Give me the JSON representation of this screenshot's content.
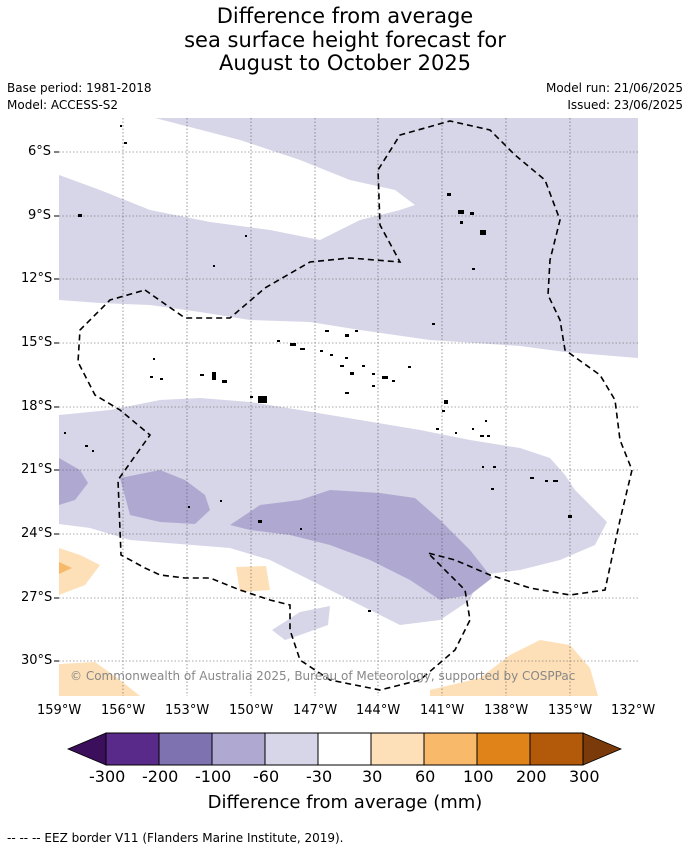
{
  "title": {
    "line1": "Difference from average",
    "line2": "sea surface height forecast for",
    "line3": "August to October 2025"
  },
  "meta": {
    "base_period": "Base period: 1981-2018",
    "model": "Model: ACCESS-S2",
    "model_run": "Model run: 21/06/2025",
    "issued": "Issued: 23/06/2025"
  },
  "copyright": "© Commonwealth of Australia 2025, Bureau of Meteorology, supported by COSPPac",
  "map": {
    "lat_ticks": [
      "6°S",
      "9°S",
      "12°S",
      "15°S",
      "18°S",
      "21°S",
      "24°S",
      "27°S",
      "30°S"
    ],
    "lon_ticks": [
      "159°W",
      "156°W",
      "153°W",
      "150°W",
      "147°W",
      "144°W",
      "141°W",
      "138°W",
      "135°W",
      "132°W"
    ],
    "lat_range": [
      -31.5,
      -4.5
    ],
    "lon_range": [
      -159,
      -132
    ],
    "colors": {
      "light_purple": "#d6d6e8",
      "mid_purple": "#afa9d1",
      "light_orange": "#fde0b8",
      "mid_orange": "#f9b96b"
    }
  },
  "colorbar": {
    "labels": [
      "-300",
      "-200",
      "-100",
      "-60",
      "-30",
      "30",
      "60",
      "100",
      "200",
      "300"
    ],
    "colors": [
      "#3b0f5b",
      "#5a2a8a",
      "#7e72b0",
      "#afa9d1",
      "#d6d6e8",
      "#ffffff",
      "#fde0b8",
      "#f9b96b",
      "#e0841a",
      "#b35a0a",
      "#7a3a0a"
    ],
    "title": "Difference from average (mm)"
  },
  "footnote": "--  --  -- EEZ border V11 (Flanders Marine Institute, 2019)."
}
